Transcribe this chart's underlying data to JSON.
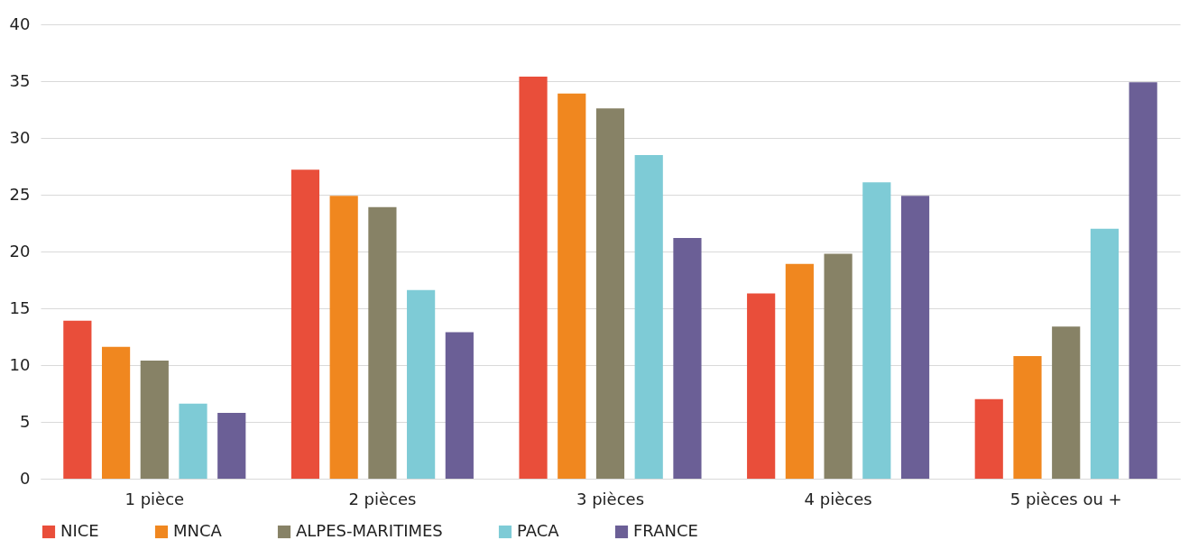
{
  "chart_data": {
    "type": "bar",
    "categories": [
      "1 pièce",
      "2 pièces",
      "3 pièces",
      "4 pièces",
      "5 pièces ou +"
    ],
    "series": [
      {
        "name": "NICE",
        "color": "#e94e3a",
        "values": [
          13.9,
          27.2,
          35.4,
          16.3,
          7.0
        ]
      },
      {
        "name": "MNCA",
        "color": "#f0871f",
        "values": [
          11.6,
          24.9,
          33.9,
          18.9,
          10.8
        ]
      },
      {
        "name": "ALPES-MARITIMES",
        "color": "#878266",
        "values": [
          10.4,
          23.9,
          32.6,
          19.8,
          13.4
        ]
      },
      {
        "name": "PACA",
        "color": "#7ecbd6",
        "values": [
          6.6,
          16.6,
          28.5,
          26.1,
          22.0
        ]
      },
      {
        "name": "FRANCE",
        "color": "#6b5f96",
        "values": [
          5.8,
          12.9,
          21.2,
          24.9,
          34.9
        ]
      }
    ],
    "ylim": [
      0,
      40
    ],
    "yticks": [
      0,
      5,
      10,
      15,
      20,
      25,
      30,
      35,
      40
    ],
    "grid": "y",
    "legend": "bottom"
  }
}
